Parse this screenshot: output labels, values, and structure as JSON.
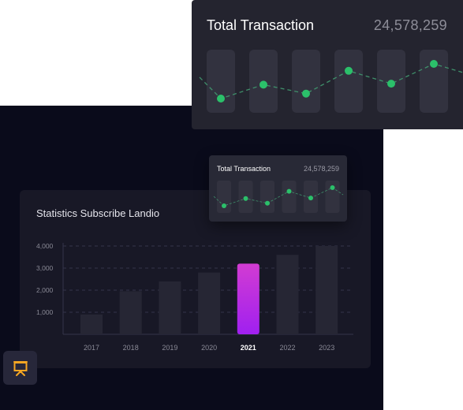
{
  "top_card": {
    "title": "Total Transaction",
    "value": "24,578,259",
    "trend": [
      42,
      56,
      47,
      70,
      57,
      77
    ]
  },
  "mini_card": {
    "title": "Total Transaction",
    "value": "24,578,259",
    "trend": [
      42,
      56,
      47,
      70,
      57,
      77
    ]
  },
  "colors": {
    "accent_green": "#2bc06a",
    "highlight_bar_top": "#d23cd2",
    "highlight_bar_bottom": "#a020f0",
    "bar": "#262634"
  },
  "chart_data": {
    "type": "bar",
    "title": "Statistics Subscribe Landio",
    "categories": [
      "2017",
      "2018",
      "2019",
      "2020",
      "2021",
      "2022",
      "2023"
    ],
    "values": [
      900,
      1950,
      2400,
      2800,
      3200,
      3600,
      4000
    ],
    "highlight": "2021",
    "ylim": [
      0,
      4000
    ],
    "yticks": [
      1000,
      2000,
      3000,
      4000
    ],
    "ytick_labels": [
      "1,000",
      "2,000",
      "3,000",
      "4,000"
    ],
    "grid": true
  },
  "toolbar": {
    "slide_icon": "presentation-icon"
  }
}
